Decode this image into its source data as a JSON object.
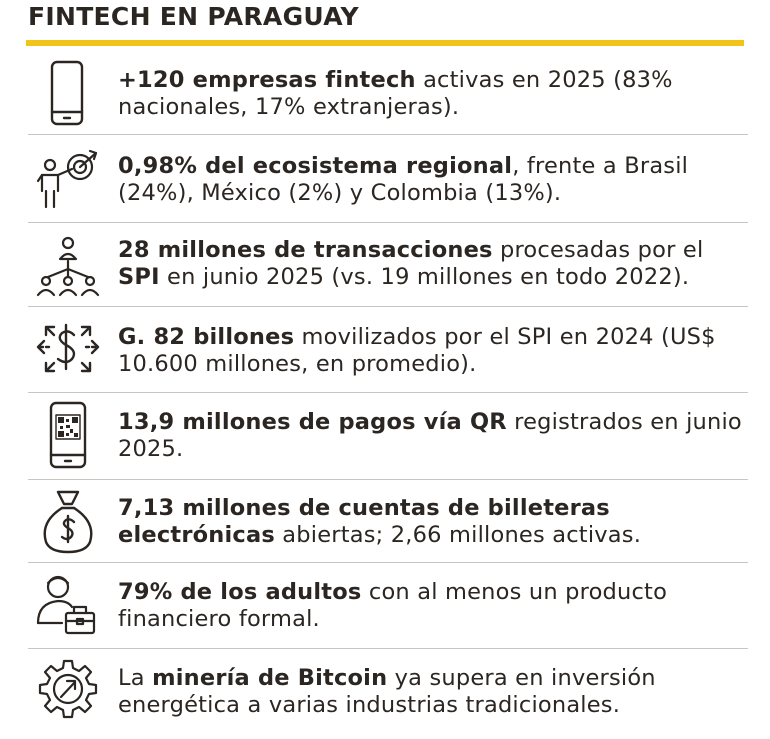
{
  "title": "FINTECH EN PARAGUAY",
  "colors": {
    "accent": "#f2c418",
    "text": "#2b2622",
    "divider": "#c9c6c2"
  },
  "items": [
    {
      "icon": "smartphone-icon",
      "bold1": "+120 empresas fintech",
      "text1": " activas en 2025 (83% nacionales, 17% extranjeras).",
      "bold2": "",
      "text2": ""
    },
    {
      "icon": "presenter-target-icon",
      "bold1": "0,98% del ecosistema regional",
      "text1": ", frente a Brasil (24%), México (2%) y Colombia (13%).",
      "bold2": "",
      "text2": ""
    },
    {
      "icon": "network-people-icon",
      "bold1": "28 millones de transacciones",
      "text1": " procesadas por el ",
      "bold2": "SPI",
      "text2": " en junio 2025 (vs. 19 millones en todo 2022)."
    },
    {
      "icon": "dollar-arrows-icon",
      "bold1": "G. 82 billones",
      "text1": " movilizados por el SPI en 2024 (US$ 10.600 millones, en promedio).",
      "bold2": "",
      "text2": ""
    },
    {
      "icon": "qr-phone-icon",
      "bold1": "13,9 millones de pagos vía QR",
      "text1": " registrados en junio 2025.",
      "bold2": "",
      "text2": ""
    },
    {
      "icon": "money-bag-icon",
      "bold1": "7,13 millones de cuentas de billeteras electrónicas",
      "text1": " abiertas; 2,66 millones activas.",
      "bold2": "",
      "text2": ""
    },
    {
      "icon": "person-briefcase-icon",
      "bold1": "79% de los adultos",
      "text1": " con al menos un producto financiero formal.",
      "bold2": "",
      "text2": ""
    },
    {
      "icon": "gear-growth-icon",
      "pre": "La ",
      "bold1": "minería de Bitcoin",
      "text1": " ya supera en inversión energética a varias industrias tradicionales.",
      "bold2": "",
      "text2": ""
    }
  ]
}
